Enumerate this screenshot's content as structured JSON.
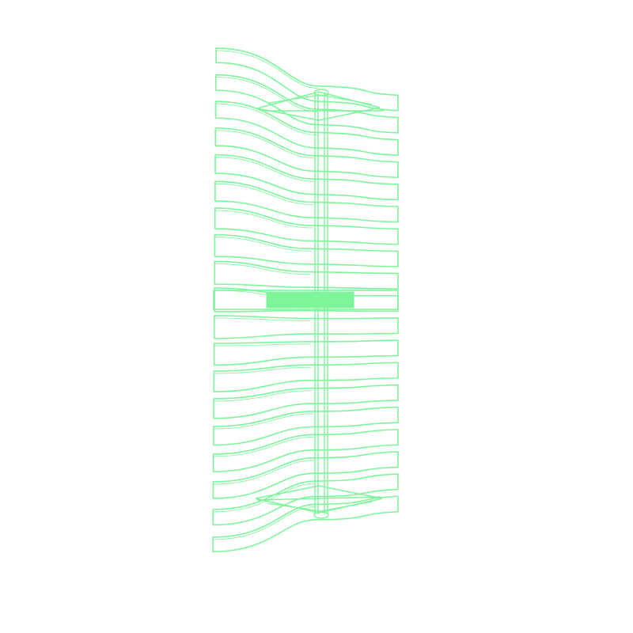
{
  "figure": {
    "background": "#ffffff",
    "stroke_color": "#7ef59a",
    "fill_color": "#7ef59a",
    "style": "wireframe",
    "slat_count": 19,
    "highlighted_slat": 9
  }
}
